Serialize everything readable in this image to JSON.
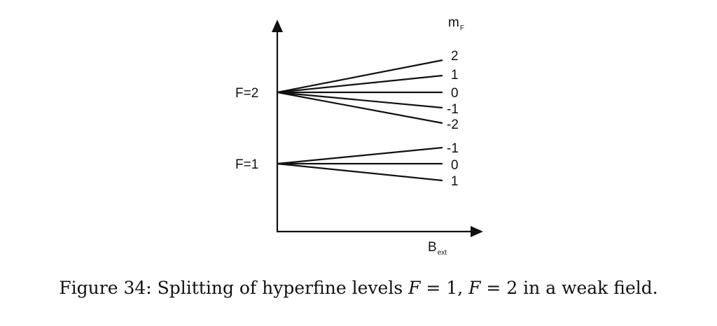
{
  "diagram": {
    "axis_labels": {
      "y_label_main": "m",
      "y_label_sub": "F",
      "x_label_main": "B",
      "x_label_sub": "ext"
    },
    "levels": [
      {
        "name": "F=2",
        "label": "F=2",
        "sublevels": [
          "2",
          "1",
          "0",
          "-1",
          "-2"
        ]
      },
      {
        "name": "F=1",
        "label": "F=1",
        "sublevels": [
          "-1",
          "0",
          "1"
        ]
      }
    ]
  },
  "caption": {
    "prefix": "Figure 34: Splitting of hyperfine levels ",
    "var1": "F",
    "eq1": " = 1, ",
    "var2": "F",
    "eq2": " = 2 in a weak field."
  }
}
